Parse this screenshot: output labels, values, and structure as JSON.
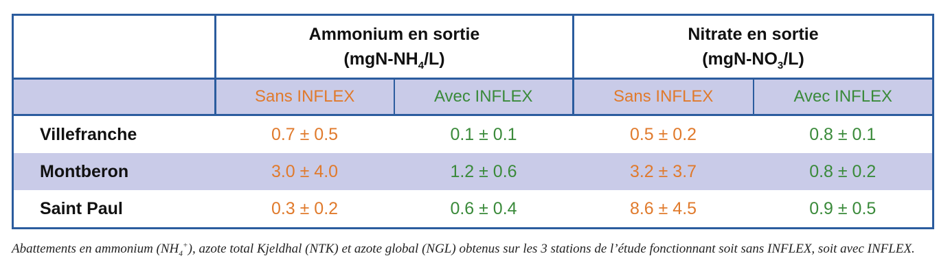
{
  "table": {
    "group_headers": [
      {
        "line1": "Ammonium en sortie",
        "unit_prefix": "(mgN-NH",
        "unit_sub": "4",
        "unit_suffix": "/L)"
      },
      {
        "line1": "Nitrate en sortie",
        "unit_prefix": "(mgN-NO",
        "unit_sub": "3",
        "unit_suffix": "/L)"
      }
    ],
    "sub_headers": [
      "Sans INFLEX",
      "Avec INFLEX",
      "Sans INFLEX",
      "Avec INFLEX"
    ],
    "rows": [
      {
        "site": "Villefranche",
        "values": [
          "0.7 ± 0.5",
          "0.1 ± 0.1",
          "0.5 ± 0.2",
          "0.8 ± 0.1"
        ]
      },
      {
        "site": "Montberon",
        "values": [
          "3.0 ± 4.0",
          "1.2 ± 0.6",
          "3.2 ± 3.7",
          "0.8 ± 0.2"
        ]
      },
      {
        "site": "Saint Paul",
        "values": [
          "0.3 ± 0.2",
          "0.6 ± 0.4",
          "8.6 ± 4.5",
          "0.9 ± 0.5"
        ]
      }
    ],
    "colors": {
      "border": "#2b5c9e",
      "shade": "#c9cbe8",
      "sans": "#e07a2c",
      "avec": "#3a8a3a"
    }
  },
  "caption": {
    "part1": "Abattements en ammonium (NH",
    "sub": "4",
    "sup": "+",
    "part2": "), azote total Kjeldhal (NTK) et azote global (NGL) obtenus sur les 3 stations de l’étude fonctionnant soit sans INFLEX, soit avec INFLEX."
  }
}
